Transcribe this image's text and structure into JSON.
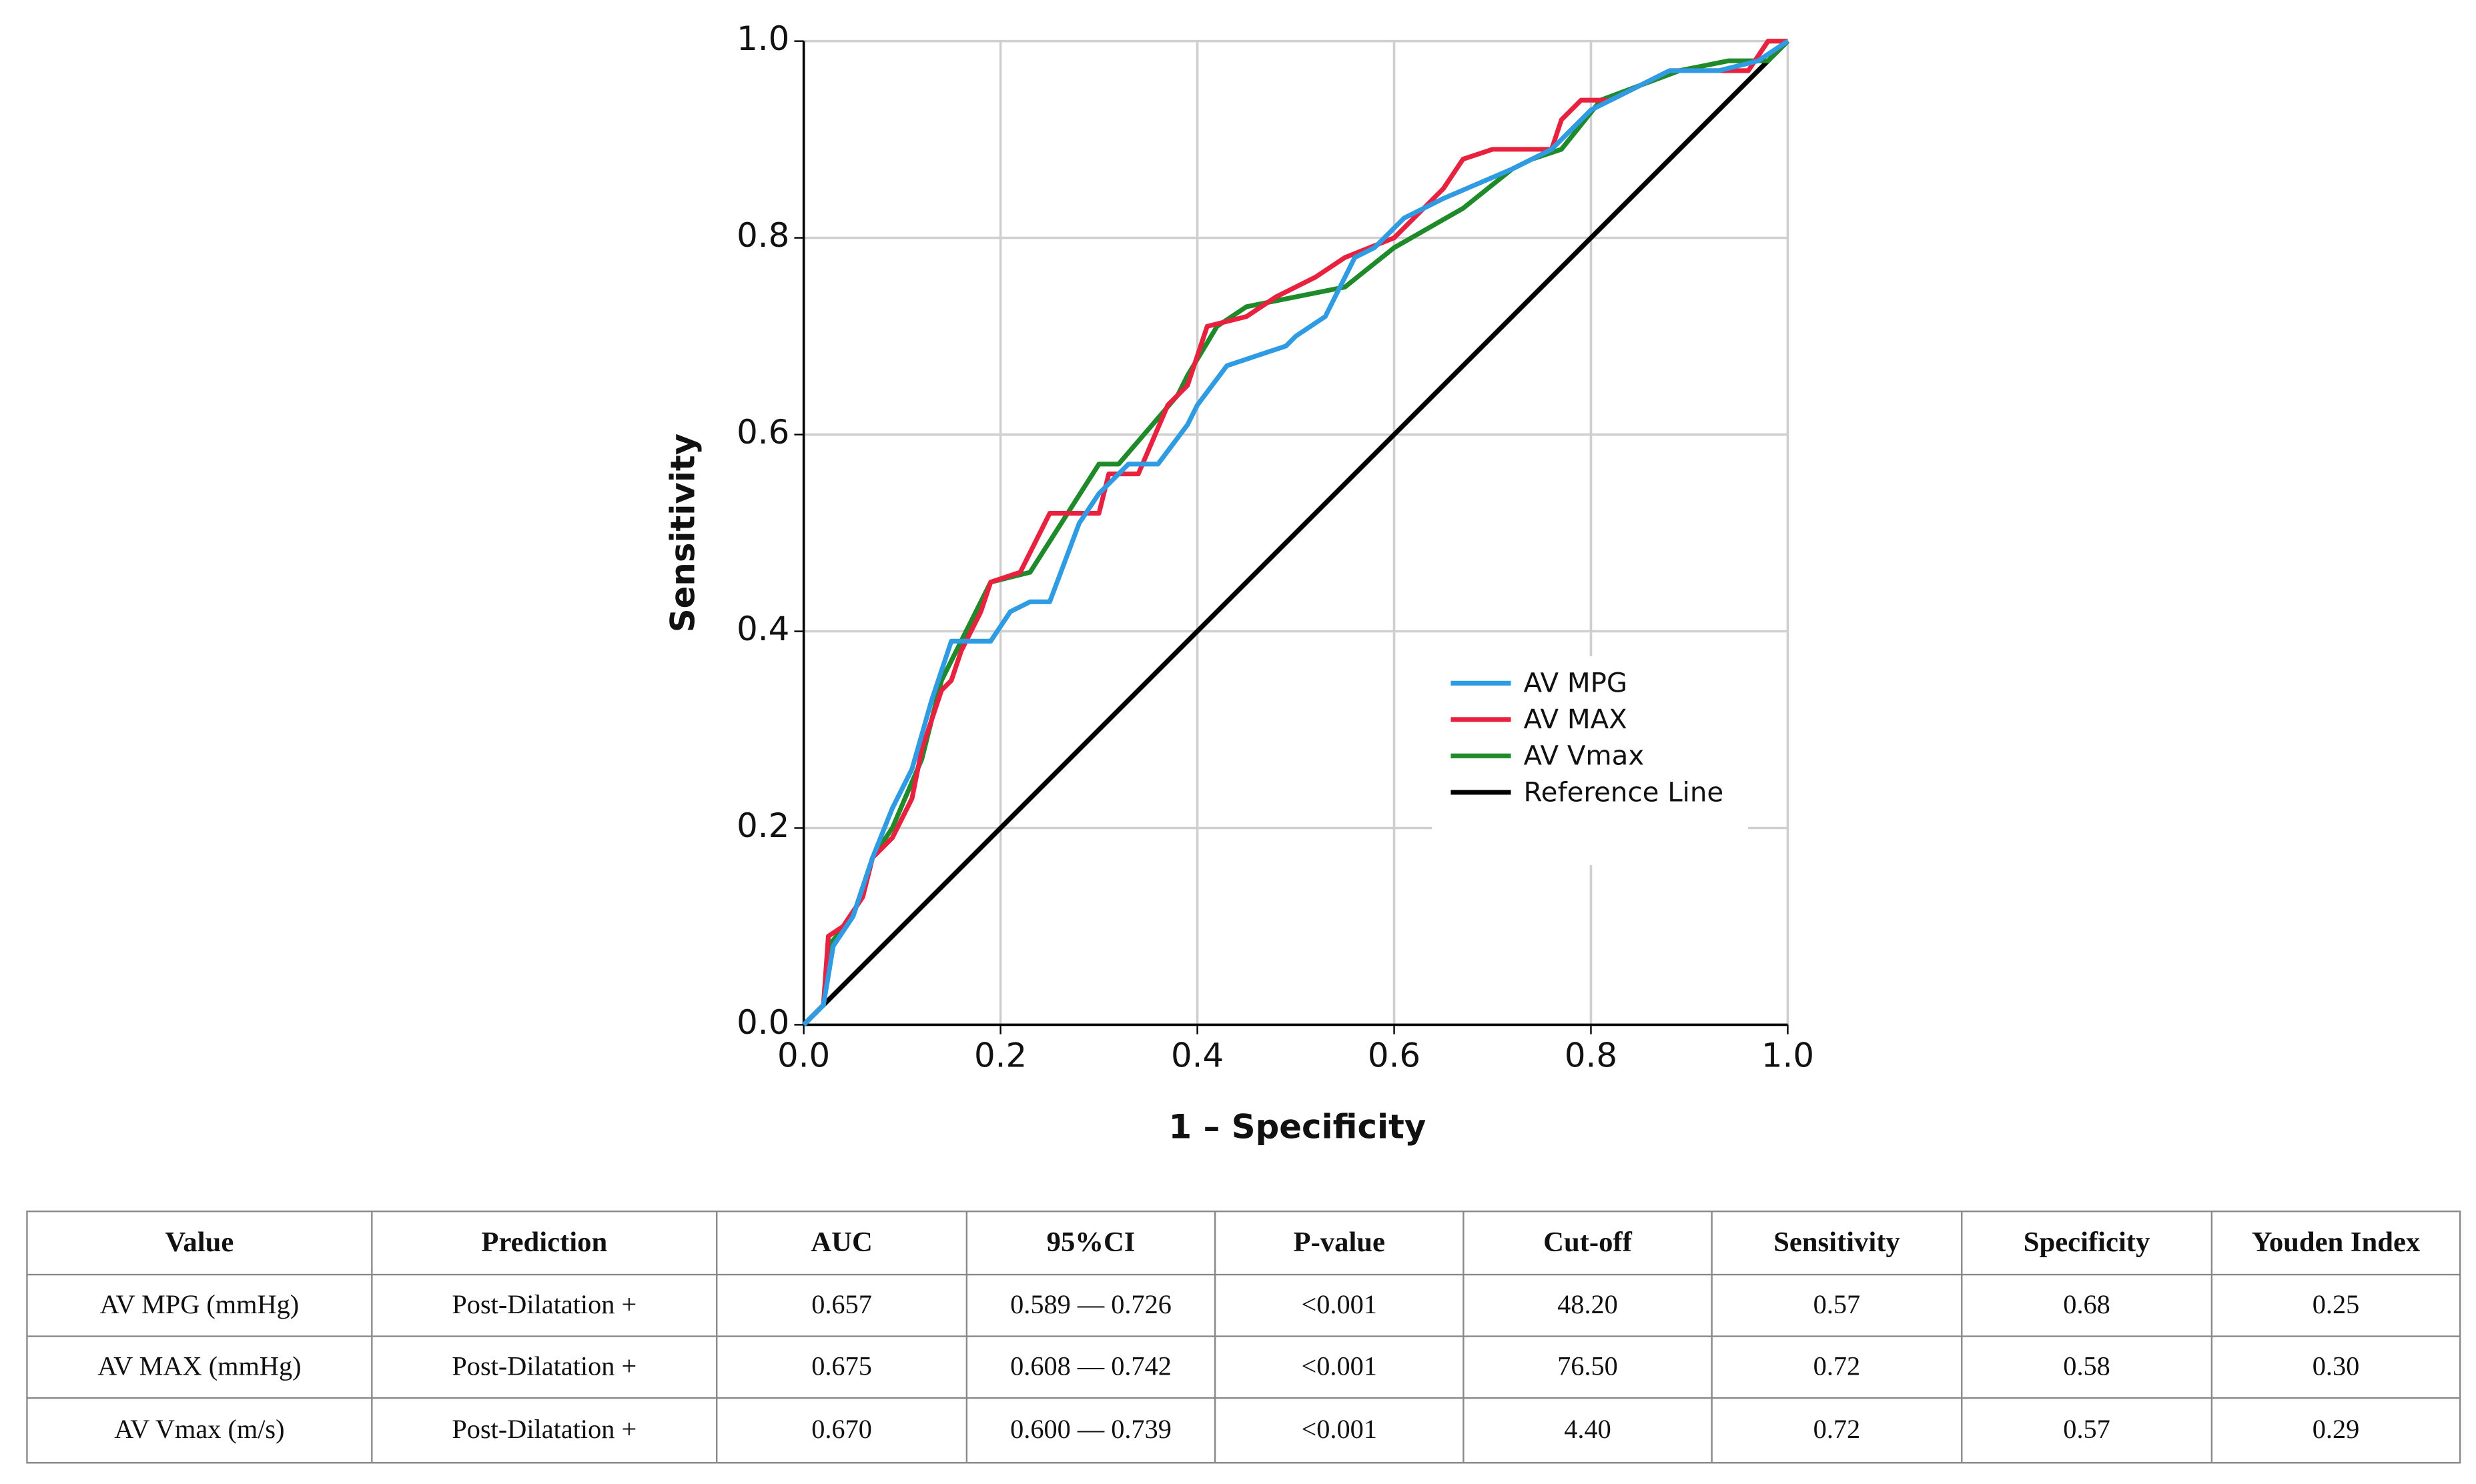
{
  "chart_data": {
    "type": "line",
    "xlabel": "1 – Specificity",
    "ylabel": "Sensitivity",
    "xlim": [
      0,
      1
    ],
    "ylim": [
      0,
      1
    ],
    "xticks": [
      {
        "value": 0,
        "label": "0.0"
      },
      {
        "value": 0.2,
        "label": "0.2"
      },
      {
        "value": 0.4,
        "label": "0.4"
      },
      {
        "value": 0.6,
        "label": "0.6"
      },
      {
        "value": 0.8,
        "label": "0.8"
      },
      {
        "value": 1,
        "label": "1.0"
      }
    ],
    "yticks": [
      {
        "value": 0,
        "label": "0.0"
      },
      {
        "value": 0.2,
        "label": "0.2"
      },
      {
        "value": 0.4,
        "label": "0.4"
      },
      {
        "value": 0.6,
        "label": "0.6"
      },
      {
        "value": 0.8,
        "label": "0.8"
      },
      {
        "value": 1,
        "label": "1.0"
      }
    ],
    "grid": true,
    "legend": "lower right",
    "series": [
      {
        "name": "AV MPG",
        "color": "#2f9be3",
        "x": [
          0,
          0.02,
          0.03,
          0.05,
          0.07,
          0.09,
          0.11,
          0.13,
          0.15,
          0.19,
          0.21,
          0.23,
          0.25,
          0.28,
          0.3,
          0.33,
          0.36,
          0.39,
          0.4,
          0.43,
          0.49,
          0.5,
          0.53,
          0.56,
          0.58,
          0.61,
          0.65,
          0.72,
          0.76,
          0.8,
          0.88,
          0.93,
          0.97,
          1
        ],
        "values": [
          0,
          0.02,
          0.08,
          0.11,
          0.17,
          0.22,
          0.26,
          0.33,
          0.39,
          0.39,
          0.42,
          0.43,
          0.43,
          0.51,
          0.54,
          0.57,
          0.57,
          0.61,
          0.63,
          0.67,
          0.69,
          0.7,
          0.72,
          0.78,
          0.79,
          0.82,
          0.84,
          0.87,
          0.89,
          0.93,
          0.97,
          0.97,
          0.98,
          1
        ]
      },
      {
        "name": "AV MAX",
        "color": "#e8213f",
        "x": [
          0,
          0.02,
          0.025,
          0.04,
          0.06,
          0.07,
          0.09,
          0.11,
          0.12,
          0.14,
          0.15,
          0.16,
          0.18,
          0.19,
          0.22,
          0.25,
          0.3,
          0.31,
          0.34,
          0.37,
          0.39,
          0.41,
          0.45,
          0.48,
          0.52,
          0.55,
          0.6,
          0.65,
          0.67,
          0.7,
          0.76,
          0.77,
          0.79,
          0.82,
          0.86,
          0.88,
          0.96,
          0.98,
          1
        ],
        "values": [
          0,
          0.02,
          0.09,
          0.1,
          0.13,
          0.17,
          0.19,
          0.23,
          0.28,
          0.34,
          0.35,
          0.38,
          0.42,
          0.45,
          0.46,
          0.52,
          0.52,
          0.56,
          0.56,
          0.63,
          0.65,
          0.71,
          0.72,
          0.74,
          0.76,
          0.78,
          0.8,
          0.85,
          0.88,
          0.89,
          0.89,
          0.92,
          0.94,
          0.94,
          0.96,
          0.97,
          0.97,
          1,
          1
        ]
      },
      {
        "name": "AV Vmax",
        "color": "#1f8a2a",
        "x": [
          0,
          0.02,
          0.025,
          0.05,
          0.07,
          0.09,
          0.12,
          0.14,
          0.16,
          0.19,
          0.23,
          0.3,
          0.32,
          0.38,
          0.39,
          0.42,
          0.45,
          0.55,
          0.6,
          0.67,
          0.72,
          0.74,
          0.77,
          0.81,
          0.89,
          0.94,
          0.98,
          1
        ],
        "values": [
          0,
          0.02,
          0.08,
          0.11,
          0.17,
          0.2,
          0.27,
          0.35,
          0.39,
          0.45,
          0.46,
          0.57,
          0.57,
          0.64,
          0.66,
          0.71,
          0.73,
          0.75,
          0.79,
          0.83,
          0.87,
          0.88,
          0.89,
          0.94,
          0.97,
          0.98,
          0.98,
          1
        ]
      },
      {
        "name": "Reference Line",
        "color": "#000000",
        "x": [
          0,
          1
        ],
        "values": [
          0,
          1
        ]
      }
    ]
  },
  "table": {
    "header": [
      "Value",
      "Prediction",
      "AUC",
      "95%CI",
      "P-value",
      "Cut-off",
      "Sensitivity",
      "Specificity",
      "Youden Index"
    ],
    "rows": [
      [
        "AV MPG (mmHg)",
        "Post-Dilatation +",
        "0.657",
        "0.589 — 0.726",
        "<0.001",
        "48.20",
        "0.57",
        "0.68",
        "0.25"
      ],
      [
        "AV MAX (mmHg)",
        "Post-Dilatation +",
        "0.675",
        "0.608 — 0.742",
        "<0.001",
        "76.50",
        "0.72",
        "0.58",
        "0.30"
      ],
      [
        "AV Vmax (m/s)",
        "Post-Dilatation +",
        "0.670",
        "0.600 — 0.739",
        "<0.001",
        "4.40",
        "0.72",
        "0.57",
        "0.29"
      ]
    ]
  }
}
